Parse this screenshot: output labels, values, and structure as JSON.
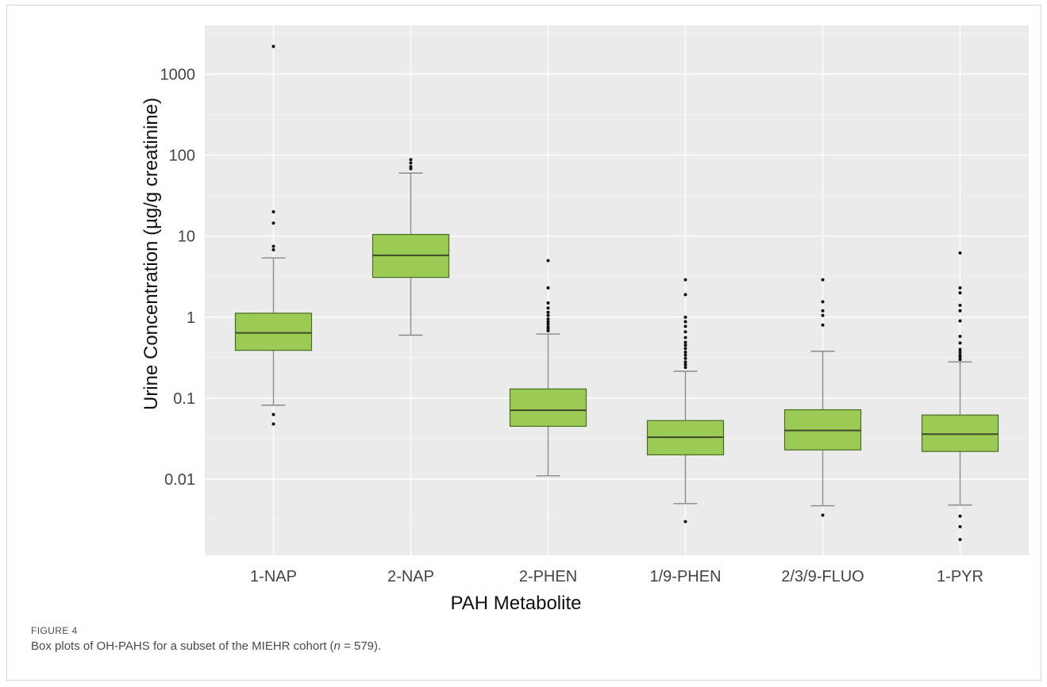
{
  "figure": {
    "label": "FIGURE 4",
    "caption_prefix": "Box plots of OH-PAHS for a subset of the MIEHR cohort (",
    "caption_n_symbol": "n",
    "caption_suffix": " = 579)."
  },
  "chart_data": {
    "type": "box",
    "title": "",
    "xlabel": "PAH Metabolite",
    "ylabel": "Urine Concentration (µg/g creatinine)",
    "yscale": "log10",
    "ylim": [
      0.00115,
      4000
    ],
    "yticks": [
      0.01,
      0.1,
      1,
      10,
      100,
      1000
    ],
    "ytick_labels": [
      "0.01",
      "0.1",
      "1",
      "10",
      "100",
      "1000"
    ],
    "grid": true,
    "legend": "none",
    "colors": {
      "panel_bg": "#ebebeb",
      "grid_major": "#ffffff",
      "grid_minor": "#f4f4f4",
      "box_fill": "#9ccb55",
      "box_stroke": "#4a6b22",
      "median": "#3e4a2a",
      "whisker": "#8a8a8a",
      "outlier": "#111111"
    },
    "categories": [
      "1-NAP",
      "2-NAP",
      "2-PHEN",
      "1/9-PHEN",
      "2/3/9-FLUO",
      "1-PYR"
    ],
    "boxes": [
      {
        "whislo": 0.082,
        "q1": 0.39,
        "med": 0.64,
        "q3": 1.12,
        "whishi": 5.4,
        "fliers": [
          2200,
          20,
          14.5,
          7.5,
          6.8,
          0.063,
          0.048
        ]
      },
      {
        "whislo": 0.6,
        "q1": 3.1,
        "med": 5.8,
        "q3": 10.5,
        "whishi": 60,
        "fliers": [
          88,
          80,
          72,
          68
        ]
      },
      {
        "whislo": 0.011,
        "q1": 0.045,
        "med": 0.071,
        "q3": 0.13,
        "whishi": 0.62,
        "fliers": [
          5.0,
          2.3,
          1.5,
          1.3,
          1.15,
          1.05,
          0.95,
          0.88,
          0.82,
          0.76,
          0.72,
          0.68
        ]
      },
      {
        "whislo": 0.005,
        "q1": 0.02,
        "med": 0.033,
        "q3": 0.053,
        "whishi": 0.215,
        "fliers": [
          2.9,
          1.9,
          1.0,
          0.88,
          0.77,
          0.66,
          0.56,
          0.49,
          0.45,
          0.41,
          0.37,
          0.34,
          0.31,
          0.28,
          0.26,
          0.24,
          0.003
        ]
      },
      {
        "whislo": 0.0047,
        "q1": 0.023,
        "med": 0.04,
        "q3": 0.072,
        "whishi": 0.38,
        "fliers": [
          2.9,
          1.55,
          1.2,
          1.05,
          0.8,
          0.0036
        ]
      },
      {
        "whislo": 0.0048,
        "q1": 0.022,
        "med": 0.036,
        "q3": 0.062,
        "whishi": 0.28,
        "fliers": [
          6.2,
          2.3,
          2.0,
          1.4,
          1.2,
          0.9,
          0.58,
          0.48,
          0.4,
          0.37,
          0.34,
          0.32,
          0.3,
          0.0035,
          0.0026,
          0.0018
        ]
      }
    ]
  }
}
